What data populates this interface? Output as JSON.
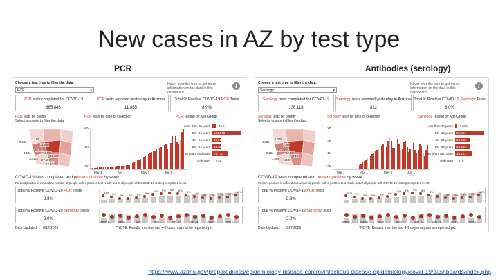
{
  "slide": {
    "title": "New cases in AZ by test type",
    "url": "https://www.azdhs.gov/preparedness/epidemiology-disease-control/infectious-disease-epidemiology/covid-19/dashboards/index.php"
  },
  "panels": [
    {
      "heading": "PCR",
      "filter_label": "Choose a test type to filter the data.",
      "filter_value": "PCR",
      "hover_hint": "Hover over the icon to get more information on the data in this dashboard.",
      "kpis": [
        {
          "label_red": "PCR",
          "label_rest": " tests completed for COVID-19",
          "value": "365,846"
        },
        {
          "label_red": "PCR",
          "label_rest": " tests reported yesterday in Arizona",
          "value": "11,855"
        },
        {
          "label_pre": "Total % Positive COVID-19 ",
          "label_red": "PCR",
          "label_rest": " Tests",
          "value": "8.9%"
        }
      ],
      "county_title_red": "PCR",
      "county_title_rest": " tests by county",
      "county_sub": "Select a county to filter the data.",
      "date_title_red": "PCR",
      "date_title_rest": " tests by date of collection",
      "age_title_red": "PCR",
      "age_title_rest": " Testing by Age Group",
      "y_ticks": [
        "10K",
        "5K",
        "0K"
      ],
      "x_ticks": [
        "Mar 1",
        "Apr 1",
        "May 1",
        "Jun 1"
      ],
      "age_groups": [
        {
          "label": "Less than 20 years",
          "value": "15,5",
          "frac": 0.14
        },
        {
          "label": "20 - 44 years",
          "value": "141,878",
          "frac": 1.0
        },
        {
          "label": "45 - 54 years",
          "value": "43,587",
          "frac": 0.31
        },
        {
          "label": "55 - 64 years",
          "value": "44,599",
          "frac": 0.32
        },
        {
          "label": "65 years and older",
          "value": "78,733",
          "frac": 0.55
        },
        {
          "label": "Unknown",
          "value": "741",
          "frac": 0.0
        }
      ],
      "map_numbers": [
        "6,262",
        "7,166",
        "11,569",
        "60,853",
        "6,681",
        "13,885",
        "30,163",
        "27,197",
        "16,187",
        "13,883",
        "7,7"
      ],
      "weekly_title_pre": "COVID-19 tests completed and ",
      "weekly_title_red": "percent positive",
      "weekly_title_rest": " by week",
      "weekly_sub": "Percent positive is defined as number of people with a positive test result, out of all people with COVID-19 testing completed in AZ.",
      "week_pcr": {
        "label_pre": "Total % Positive COVID-19 ",
        "label_red": "PCR",
        "label_rest": " Tests",
        "value": "8.9%"
      },
      "week_sero": {
        "label_pre": "Total % Positive COVID-19 ",
        "label_red": "Serology",
        "label_rest": " Tests",
        "value": "3.0%"
      },
      "week_labels": [
        "12%",
        "7%",
        "5%",
        "5%",
        "8%",
        "9%",
        "11%",
        "9%",
        "9%",
        "6%",
        "4%",
        "4%",
        "5%",
        "7%",
        "9%",
        "12%",
        "13%"
      ],
      "week_x": [
        "March 1...",
        "March...",
        "April 1...",
        "April 2...",
        "May 10...",
        "May 24...",
        "June 7...",
        "June 21..."
      ],
      "date_updated_label": "Date Updated",
      "date_updated": "6/17/2020",
      "note": "*NOTE: Results from the last 4-7 days may not be reported yet."
    },
    {
      "heading": "Antibodies (serology)",
      "filter_label": "Choose a test type to filter the data.",
      "filter_value": "Serology",
      "hover_hint": "Hover over the icon to get more information on the data in this dashboard.",
      "kpis": [
        {
          "label_red": "Serology",
          "label_rest": " tests completed for COVID-19",
          "value": "136,118"
        },
        {
          "label_red": "Serology",
          "label_rest": " tests reported yesterday in Arizona",
          "value": "822"
        },
        {
          "label_pre": "Total % Positive COVID-19 ",
          "label_red": "Serology",
          "label_rest": " Tests",
          "value": "3.0%"
        }
      ],
      "county_title_red": "Serology",
      "county_title_rest": " tests by county",
      "county_sub": "Select a county to filter the data.",
      "date_title_red": "Serology",
      "date_title_rest": " tests by date of collection",
      "age_title_red": "Serology",
      "age_title_rest": " Testing by Age Group",
      "y_ticks": [
        "6K",
        "4K",
        "2K",
        "0K"
      ],
      "x_ticks": [
        "Mar 1",
        "Apr 1",
        "May 1",
        "Jun 1"
      ],
      "age_groups": [
        {
          "label": "Less than 20 years",
          "value": "3,963",
          "frac": 0.08
        },
        {
          "label": "20 - 44 years",
          "value": "50,861",
          "frac": 1.0
        },
        {
          "label": "45 - 54 years",
          "value": "26,668",
          "frac": 0.52
        },
        {
          "label": "55 - 64 years",
          "value": "26,262",
          "frac": 0.52
        },
        {
          "label": "65 years and older",
          "value": "30,121",
          "frac": 0.59
        },
        {
          "label": "Unknown",
          "value": "178",
          "frac": 0.0
        }
      ],
      "map_numbers": [
        "1,036",
        "1,389",
        "1,364",
        "30,500",
        "9,281",
        "10,305",
        "3,856",
        "14,9",
        "3,101"
      ],
      "weekly_title_pre": "COVID-19 tests completed and ",
      "weekly_title_red": "percent positive",
      "weekly_title_rest": " by week",
      "weekly_sub": "Percent positive is defined as number of people with a positive test result, out of all people with COVID-19 testing completed in AZ.",
      "week_pcr": {
        "label_pre": "Total % Positive COVID-19 ",
        "label_red": "PCR",
        "label_rest": " Tests",
        "value": "8.9%"
      },
      "week_sero": {
        "label_pre": "Total % Positive COVID-19 ",
        "label_red": "Serology",
        "label_rest": " Tests",
        "value": "3.0%"
      },
      "week_labels": [
        "12%",
        "7%",
        "5%",
        "5%",
        "8%",
        "9%",
        "11%",
        "9%",
        "9%",
        "6%",
        "4%",
        "4%",
        "5%",
        "7%",
        "9%",
        "12%",
        "13%"
      ],
      "week_x": [
        "March 1...",
        "March...",
        "April 1...",
        "April 2...",
        "May 10...",
        "May 24...",
        "June 7...",
        "June 21..."
      ],
      "date_updated_label": "Date Updated",
      "date_updated": "6/17/2020",
      "note": "*NOTE: Results from the last 4-7 days may not be reported yet."
    }
  ],
  "colors": {
    "accent_red": "#c0392b",
    "bar_grey": "#c9c9c9"
  }
}
